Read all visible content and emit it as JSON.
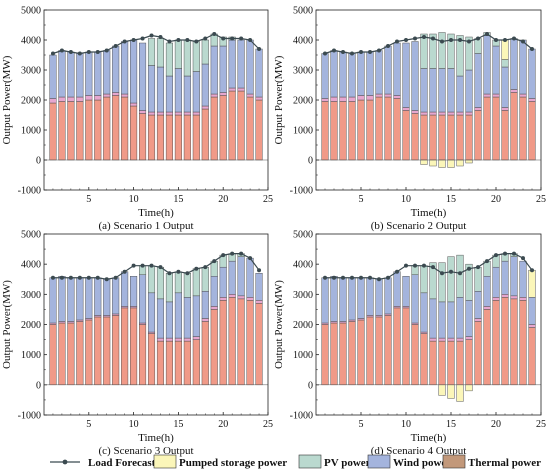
{
  "figure": {
    "legend": {
      "load_forecast": "Load Forecast",
      "pumped_storage": "Pumped storage power",
      "pv": "PV power",
      "wind": "Wind power",
      "thermal": "Thermal power"
    }
  },
  "colors": {
    "thermal": "#f09a88",
    "pink": "#e7a7cf",
    "wind": "#a4b4dd",
    "pv": "#bad9cf",
    "storage": "#fbf6b9",
    "load": "#3b4a50"
  },
  "chart_data": [
    {
      "type": "bar",
      "panel": "a",
      "caption": "(a) Scenario 1 Output",
      "xlabel": "Time(h)",
      "ylabel": "Output Power(MW)",
      "xlim": [
        0,
        25
      ],
      "ylim": [
        -1000,
        5000
      ],
      "xticks": [
        5,
        10,
        15,
        20,
        25
      ],
      "yticks": [
        -1000,
        0,
        1000,
        2000,
        3000,
        4000,
        5000
      ],
      "x": [
        1,
        2,
        3,
        4,
        5,
        6,
        7,
        8,
        9,
        10,
        11,
        12,
        13,
        14,
        15,
        16,
        17,
        18,
        19,
        20,
        21,
        22,
        23,
        24
      ],
      "series": [
        {
          "name": "Thermal power",
          "key": "thermal",
          "values": [
            1900,
            1950,
            1950,
            1950,
            2000,
            2000,
            2100,
            2150,
            2100,
            1800,
            1550,
            1500,
            1500,
            1500,
            1500,
            1500,
            1500,
            1700,
            2100,
            2150,
            2300,
            2300,
            2100,
            2000
          ]
        },
        {
          "name": "",
          "key": "pink",
          "values": [
            150,
            150,
            150,
            150,
            150,
            150,
            100,
            100,
            100,
            100,
            100,
            100,
            100,
            100,
            100,
            100,
            100,
            100,
            100,
            100,
            100,
            100,
            100,
            100
          ]
        },
        {
          "name": "Wind power",
          "key": "wind",
          "values": [
            1450,
            1550,
            1500,
            1450,
            1450,
            1450,
            1450,
            1550,
            1750,
            2100,
            2250,
            1550,
            1500,
            1200,
            1450,
            1200,
            1350,
            1400,
            1600,
            1550,
            1600,
            1600,
            1800,
            1600
          ]
        },
        {
          "name": "PV power",
          "key": "pv",
          "values": [
            0,
            0,
            0,
            0,
            0,
            0,
            0,
            0,
            0,
            0,
            0,
            900,
            950,
            1100,
            950,
            1200,
            1000,
            800,
            400,
            300,
            100,
            0,
            0,
            0
          ]
        },
        {
          "name": "Pumped storage power",
          "key": "storage",
          "values": [
            0,
            0,
            0,
            0,
            0,
            0,
            0,
            0,
            0,
            0,
            0,
            0,
            0,
            0,
            0,
            0,
            0,
            0,
            0,
            0,
            0,
            0,
            0,
            0
          ]
        }
      ],
      "load": [
        3550,
        3650,
        3600,
        3550,
        3600,
        3600,
        3650,
        3800,
        3950,
        4000,
        4050,
        4150,
        4100,
        3950,
        4000,
        4000,
        3950,
        4050,
        4200,
        4050,
        4050,
        4050,
        4000,
        3700
      ]
    },
    {
      "type": "bar",
      "panel": "b",
      "caption": "(b) Scenario 2 Output",
      "xlabel": "Time(h)",
      "ylabel": "Output Power(MW)",
      "xlim": [
        0,
        25
      ],
      "ylim": [
        -1000,
        5000
      ],
      "xticks": [
        5,
        10,
        15,
        20,
        25
      ],
      "yticks": [
        -1000,
        0,
        1000,
        2000,
        3000,
        4000,
        5000
      ],
      "x": [
        1,
        2,
        3,
        4,
        5,
        6,
        7,
        8,
        9,
        10,
        11,
        12,
        13,
        14,
        15,
        16,
        17,
        18,
        19,
        20,
        21,
        22,
        23,
        24
      ],
      "series": [
        {
          "name": "Thermal power",
          "key": "thermal",
          "values": [
            1950,
            1950,
            1950,
            1950,
            2000,
            2000,
            2100,
            2100,
            2050,
            1650,
            1550,
            1500,
            1500,
            1500,
            1500,
            1500,
            1500,
            1650,
            2100,
            2100,
            1650,
            2250,
            2100,
            1950
          ]
        },
        {
          "name": "",
          "key": "pink",
          "values": [
            100,
            150,
            150,
            150,
            150,
            150,
            100,
            100,
            100,
            100,
            100,
            100,
            100,
            100,
            100,
            100,
            100,
            100,
            100,
            100,
            100,
            100,
            100,
            100
          ]
        },
        {
          "name": "Wind power",
          "key": "wind",
          "values": [
            1500,
            1550,
            1500,
            1450,
            1450,
            1450,
            1450,
            1600,
            1750,
            2150,
            2300,
            1450,
            1450,
            1450,
            1450,
            1200,
            1400,
            1800,
            1950,
            1600,
            1350,
            1700,
            1800,
            1650
          ]
        },
        {
          "name": "PV power",
          "key": "pv",
          "values": [
            0,
            0,
            0,
            0,
            0,
            0,
            0,
            0,
            0,
            0,
            0,
            1150,
            1150,
            1200,
            1150,
            1350,
            1100,
            500,
            100,
            200,
            250,
            0,
            0,
            0
          ]
        },
        {
          "name": "Pumped storage power",
          "key": "storage",
          "values": [
            0,
            0,
            0,
            0,
            0,
            0,
            0,
            0,
            0,
            0,
            0,
            -150,
            -200,
            -250,
            -250,
            -200,
            -100,
            0,
            0,
            0,
            650,
            0,
            0,
            0
          ]
        }
      ],
      "load": [
        3550,
        3650,
        3600,
        3550,
        3600,
        3600,
        3650,
        3800,
        3950,
        4000,
        4050,
        4100,
        4050,
        3950,
        4000,
        4000,
        3950,
        4050,
        4200,
        4000,
        4000,
        4050,
        3950,
        3700
      ]
    },
    {
      "type": "bar",
      "panel": "c",
      "caption": "(c) Scenario 3 Output",
      "xlabel": "Time(h)",
      "ylabel": "Output Power(MW)",
      "xlim": [
        0,
        25
      ],
      "ylim": [
        -1000,
        5000
      ],
      "xticks": [
        5,
        10,
        15,
        20,
        25
      ],
      "yticks": [
        -1000,
        0,
        1000,
        2000,
        3000,
        4000,
        5000
      ],
      "x": [
        1,
        2,
        3,
        4,
        5,
        6,
        7,
        8,
        9,
        10,
        11,
        12,
        13,
        14,
        15,
        16,
        17,
        18,
        19,
        20,
        21,
        22,
        23,
        24
      ],
      "series": [
        {
          "name": "Thermal power",
          "key": "thermal",
          "values": [
            2000,
            2050,
            2050,
            2100,
            2150,
            2250,
            2250,
            2300,
            2550,
            2550,
            2000,
            1700,
            1450,
            1450,
            1450,
            1450,
            1500,
            2100,
            2500,
            2800,
            2900,
            2850,
            2800,
            2700
          ]
        },
        {
          "name": "",
          "key": "pink",
          "values": [
            50,
            50,
            50,
            50,
            50,
            50,
            50,
            50,
            50,
            50,
            50,
            50,
            100,
            100,
            100,
            100,
            100,
            100,
            100,
            100,
            100,
            100,
            100,
            100
          ]
        },
        {
          "name": "Wind power",
          "key": "wind",
          "values": [
            1500,
            1500,
            1450,
            1400,
            1350,
            1250,
            1200,
            1200,
            1150,
            1000,
            1600,
            1300,
            1300,
            1200,
            1500,
            1350,
            1350,
            900,
            1000,
            1000,
            1100,
            1300,
            1300,
            900
          ]
        },
        {
          "name": "PV power",
          "key": "pv",
          "values": [
            0,
            0,
            0,
            0,
            0,
            0,
            0,
            0,
            0,
            0,
            300,
            900,
            1050,
            950,
            700,
            800,
            900,
            800,
            500,
            400,
            250,
            100,
            0,
            0
          ]
        },
        {
          "name": "Pumped storage power",
          "key": "storage",
          "values": [
            0,
            0,
            0,
            0,
            0,
            0,
            0,
            0,
            0,
            0,
            0,
            0,
            0,
            0,
            0,
            0,
            0,
            0,
            0,
            0,
            0,
            0,
            0,
            0
          ]
        }
      ],
      "load": [
        3550,
        3550,
        3550,
        3550,
        3550,
        3550,
        3500,
        3550,
        3750,
        3950,
        3950,
        3950,
        3900,
        3700,
        3750,
        3700,
        3850,
        3900,
        4100,
        4300,
        4350,
        4350,
        4200,
        3800
      ]
    },
    {
      "type": "bar",
      "panel": "d",
      "caption": "(d) Scenario 4 Output",
      "xlabel": "Time(h)",
      "ylabel": "Output Power(MW)",
      "xlim": [
        0,
        25
      ],
      "ylim": [
        -1000,
        5000
      ],
      "xticks": [
        5,
        10,
        15,
        20,
        25
      ],
      "yticks": [
        -1000,
        0,
        1000,
        2000,
        3000,
        4000,
        5000
      ],
      "x": [
        1,
        2,
        3,
        4,
        5,
        6,
        7,
        8,
        9,
        10,
        11,
        12,
        13,
        14,
        15,
        16,
        17,
        18,
        19,
        20,
        21,
        22,
        23,
        24
      ],
      "series": [
        {
          "name": "Thermal power",
          "key": "thermal",
          "values": [
            2000,
            2050,
            2050,
            2100,
            2150,
            2250,
            2250,
            2300,
            2550,
            2550,
            2000,
            1700,
            1450,
            1450,
            1450,
            1450,
            1500,
            2100,
            2500,
            2800,
            2900,
            2850,
            2800,
            1900
          ]
        },
        {
          "name": "",
          "key": "pink",
          "values": [
            50,
            50,
            50,
            50,
            50,
            50,
            50,
            50,
            50,
            50,
            50,
            50,
            100,
            100,
            100,
            100,
            100,
            100,
            100,
            100,
            100,
            100,
            100,
            100
          ]
        },
        {
          "name": "Wind power",
          "key": "wind",
          "values": [
            1500,
            1500,
            1450,
            1400,
            1350,
            1250,
            1200,
            1200,
            1150,
            1000,
            1600,
            1300,
            1300,
            1200,
            1200,
            1350,
            1200,
            900,
            1000,
            1000,
            1100,
            1300,
            1200,
            900
          ]
        },
        {
          "name": "PV power",
          "key": "pv",
          "values": [
            0,
            0,
            0,
            0,
            0,
            0,
            0,
            0,
            0,
            0,
            300,
            900,
            1200,
            1300,
            1500,
            1400,
            1200,
            800,
            500,
            400,
            250,
            100,
            0,
            0
          ]
        },
        {
          "name": "Pumped storage power",
          "key": "storage",
          "values": [
            0,
            0,
            0,
            0,
            0,
            0,
            0,
            0,
            0,
            0,
            0,
            0,
            0,
            -350,
            -450,
            -550,
            -200,
            0,
            0,
            0,
            0,
            0,
            0,
            900
          ]
        }
      ],
      "load": [
        3550,
        3550,
        3550,
        3550,
        3550,
        3550,
        3500,
        3550,
        3750,
        3950,
        3950,
        3950,
        3900,
        3700,
        3750,
        3700,
        3850,
        3900,
        4100,
        4300,
        4350,
        4350,
        4200,
        3800
      ]
    }
  ]
}
